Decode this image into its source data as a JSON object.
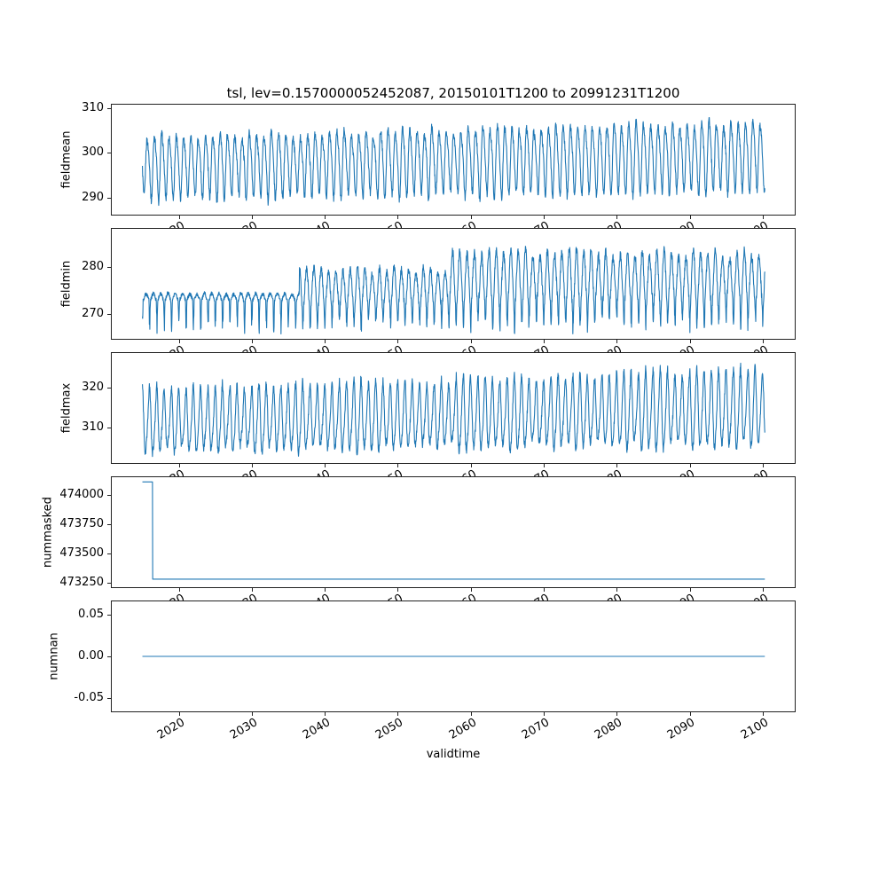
{
  "title": "tsl, lev=0.1570000052452087, 20150101T1200 to 20991231T1200",
  "xaxis": {
    "label": "validtime",
    "tick_labels": [
      "2020",
      "2030",
      "2040",
      "2050",
      "2060",
      "2070",
      "2080",
      "2090",
      "2100"
    ],
    "tick_values": [
      2020,
      2030,
      2040,
      2050,
      2060,
      2070,
      2080,
      2090,
      2100
    ],
    "xlim": [
      2010.8,
      2104.4
    ]
  },
  "chart_data": [
    {
      "type": "line",
      "ylabel": "fieldmean",
      "ytick_labels": [
        "290",
        "300",
        "310"
      ],
      "ytick_values": [
        290,
        300,
        310
      ],
      "ylim": [
        286.3,
        310.7
      ],
      "x_range": [
        2015.0,
        2100.3
      ],
      "color": "#1f77b4",
      "signal": {
        "kind": "seasonal",
        "base": 297.2,
        "trend": 2.4,
        "amp": 6.4,
        "amp_trend": 1.0,
        "phase": 0.55,
        "harm2": 1.2,
        "noise": 0.9
      }
    },
    {
      "type": "line",
      "ylabel": "fieldmin",
      "ytick_labels": [
        "270",
        "280"
      ],
      "ytick_values": [
        270,
        280
      ],
      "ylim": [
        264.8,
        288.2
      ],
      "x_range": [
        2015.0,
        2100.3
      ],
      "color": "#1f77b4",
      "signal": {
        "kind": "piecewise_min",
        "segments": [
          {
            "until": 2036.5,
            "base": 273.6,
            "amp": 0.8,
            "spike_depth": 7.0,
            "noise": 0.4
          },
          {
            "until": 2057.0,
            "base": 275.3,
            "amp": 4.3,
            "spike_depth": 4.5,
            "noise": 0.8
          },
          {
            "until": 2100.3,
            "base": 277.3,
            "amp": 5.6,
            "spike_depth": 5.0,
            "noise": 1.0
          }
        ]
      }
    },
    {
      "type": "line",
      "ylabel": "fieldmax",
      "ytick_labels": [
        "310",
        "320"
      ],
      "ytick_values": [
        310,
        320
      ],
      "ylim": [
        301.2,
        328.6
      ],
      "x_range": [
        2015.0,
        2100.3
      ],
      "color": "#1f77b4",
      "signal": {
        "kind": "seasonal",
        "base": 311.3,
        "trend": 3.2,
        "amp": 7.4,
        "amp_trend": 1.6,
        "phase": 0.3,
        "harm2": 1.4,
        "noise": 1.0
      }
    },
    {
      "type": "line",
      "ylabel": "nummasked",
      "ytick_labels": [
        "473250",
        "473500",
        "473750",
        "474000"
      ],
      "ytick_values": [
        473250,
        473500,
        473750,
        474000
      ],
      "ylim": [
        473215,
        474150
      ],
      "x_range": [
        2015.0,
        2100.3
      ],
      "color": "#1f77b4",
      "signal": {
        "kind": "step",
        "initial": 474110,
        "step_time": 2016.4,
        "final": 473283
      }
    },
    {
      "type": "line",
      "ylabel": "numnan",
      "ytick_labels": [
        "-0.05",
        "0.00",
        "0.05"
      ],
      "ytick_values": [
        -0.05,
        0.0,
        0.05
      ],
      "ylim": [
        -0.0655,
        0.0655
      ],
      "x_range": [
        2015.0,
        2100.3
      ],
      "color": "#1f77b4",
      "signal": {
        "kind": "constant",
        "value": 0
      }
    }
  ]
}
